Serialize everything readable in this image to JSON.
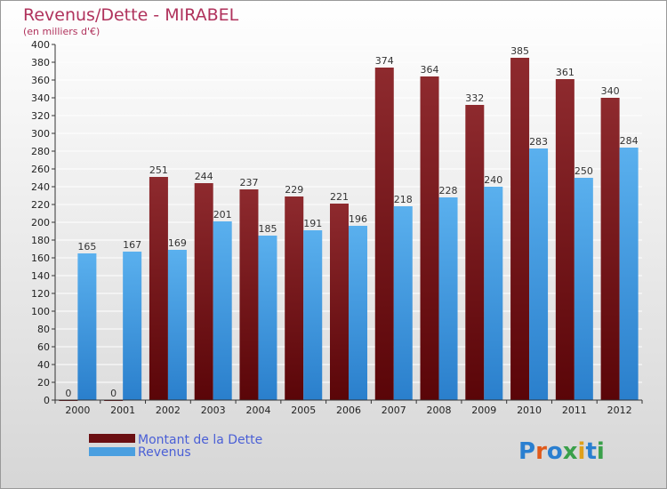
{
  "chart_data": {
    "type": "bar",
    "title": "Revenus/Dette - MIRABEL",
    "subtitle": "(en milliers d'€)",
    "categories": [
      "2000",
      "2001",
      "2002",
      "2003",
      "2004",
      "2005",
      "2006",
      "2007",
      "2008",
      "2009",
      "2010",
      "2011",
      "2012"
    ],
    "series": [
      {
        "name": "Montant de la Dette",
        "values": [
          0,
          0,
          251,
          244,
          237,
          229,
          221,
          374,
          364,
          332,
          385,
          361,
          340
        ],
        "color": "#7b1a1e"
      },
      {
        "name": "Revenus",
        "values": [
          165,
          167,
          169,
          201,
          185,
          191,
          196,
          218,
          228,
          240,
          283,
          250,
          284
        ],
        "color": "#4a9fe0"
      }
    ],
    "ylim": [
      0,
      400
    ],
    "yticks": [
      0,
      20,
      40,
      60,
      80,
      100,
      120,
      140,
      160,
      180,
      200,
      220,
      240,
      260,
      280,
      300,
      320,
      340,
      360,
      380,
      400
    ],
    "grid": true,
    "legend": "bottom-left",
    "xlabel": "",
    "ylabel": ""
  },
  "logo": {
    "text": "Proxiti"
  }
}
